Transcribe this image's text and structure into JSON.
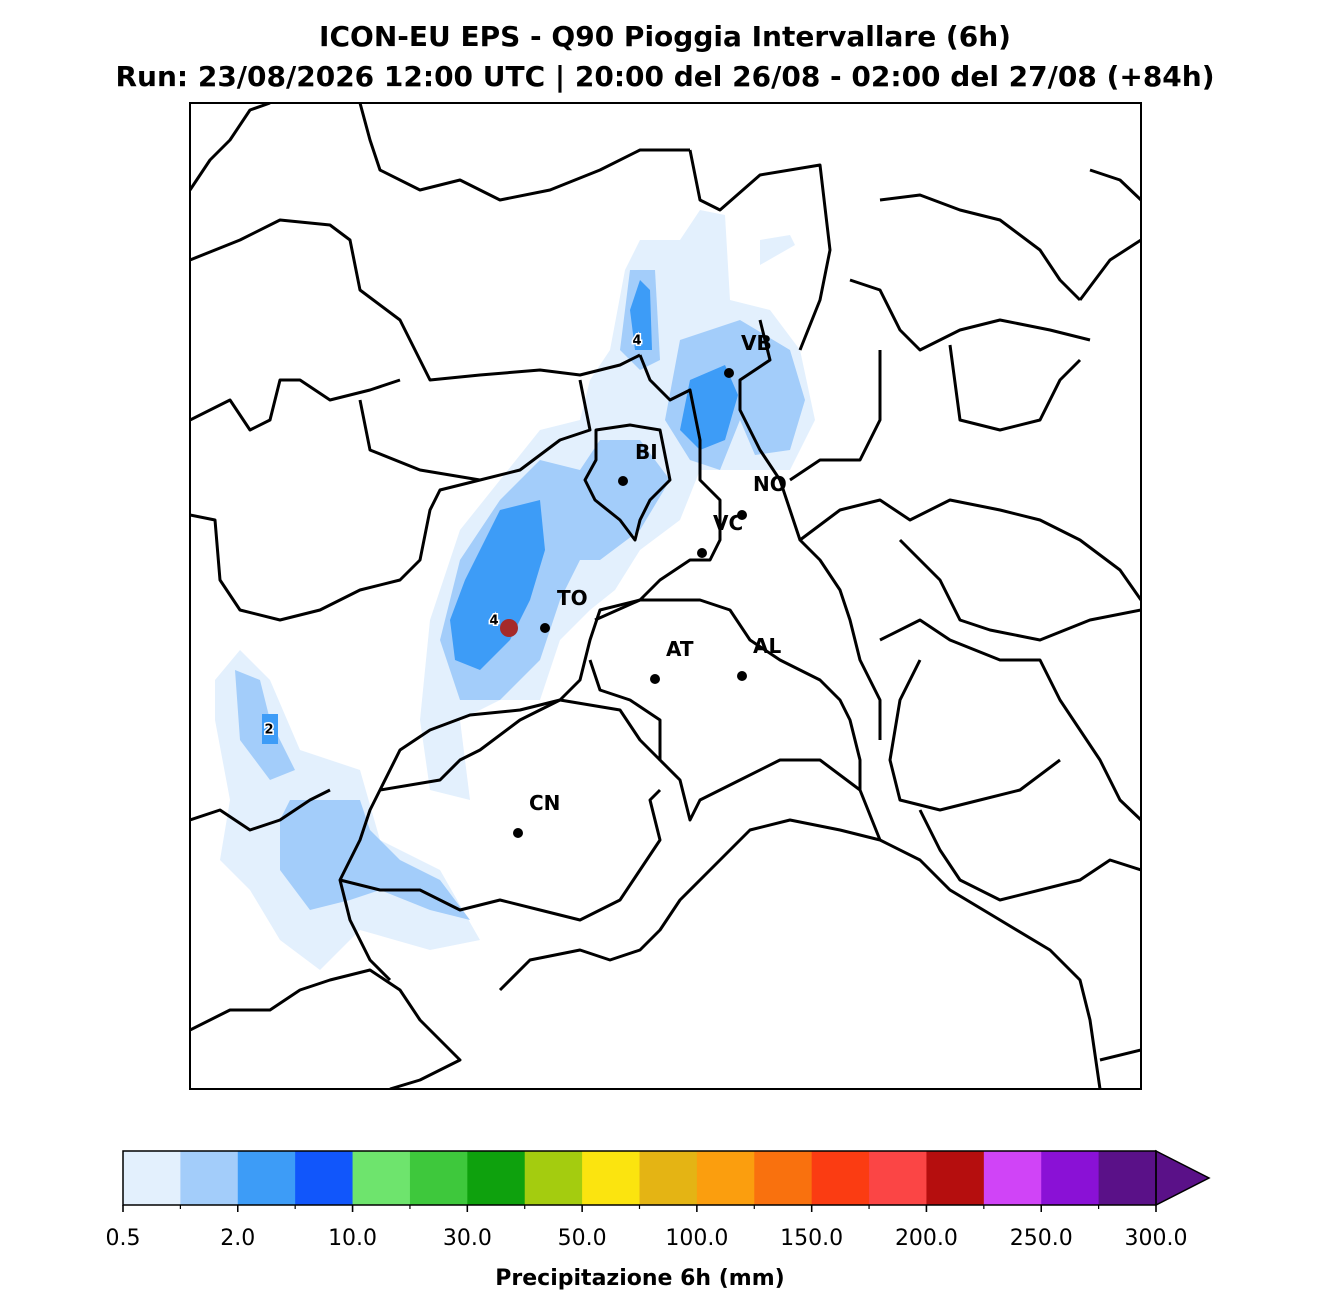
{
  "title": "ICON-EU EPS - Q90 Pioggia Intervallare (6h)",
  "subtitle": "Run: 23/08/2026 12:00 UTC | 20:00 del 26/08 - 02:00 del 27/08 (+84h)",
  "cities": [
    "VB",
    "BI",
    "NO",
    "VC",
    "TO",
    "AT",
    "AL",
    "CN"
  ],
  "contour_labels": [
    "4",
    "4",
    "2"
  ],
  "colorbar": {
    "label": "Precipitazione 6h (mm)",
    "colors": [
      "#e3f0fd",
      "#a3cdfa",
      "#3d9cf7",
      "#1156fb",
      "#6ee46d",
      "#3ec83c",
      "#0ea10d",
      "#a4cc0f",
      "#fbe40f",
      "#e4b414",
      "#fb9e0e",
      "#f9710e",
      "#fb3c12",
      "#fb4545",
      "#b50e0e",
      "#d044f7",
      "#8a11d6",
      "#5a1188"
    ],
    "ticks": [
      0.5,
      {
        "value": 2,
        "label": "2.0"
      },
      {
        "value": 10,
        "label": "10.0"
      },
      {
        "value": 30,
        "label": "30.0"
      },
      {
        "value": 50,
        "label": "50.0"
      },
      {
        "value": 100,
        "label": "100.0"
      },
      {
        "value": 150,
        "label": "150.0"
      },
      {
        "value": 200,
        "label": "200.0"
      },
      {
        "value": 250,
        "label": "250.0"
      },
      {
        "value": 300,
        "label": "300.0"
      }
    ]
  }
}
